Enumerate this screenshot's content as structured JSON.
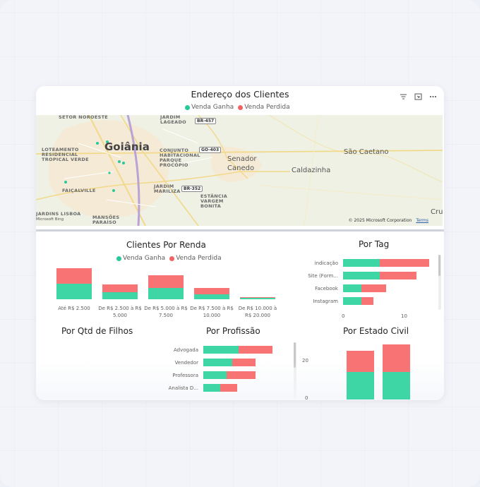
{
  "map_visual": {
    "title": "Endereço dos Clientes",
    "legend": [
      {
        "label": "Venda Ganha",
        "color": "#27c99a"
      },
      {
        "label": "Venda Perdida",
        "color": "#f26363"
      }
    ],
    "toolbar_icons": [
      "filter-icon",
      "focus-mode-icon",
      "more-options-icon"
    ],
    "place_labels": {
      "setor_noroeste": "SETOR NOROESTE",
      "jardim_lageado": "JARDIM\nLAGEADO",
      "loteamento": "LOTEAMENTO\nRESIDENCIAL\nTROPICAL VERDE",
      "goiania": "Goiânia",
      "conjunto": "CONJUNTO\nHABITACIONAL\nPARQUE\nPROCÓPIO",
      "faicalville": "FAIÇALVILLE",
      "jardim_mariliza": "JARDIM\nMARILIZA",
      "estancia": "ESTÂNCIA\nVARGEM\nBONITA",
      "jardins_lisboa": "JARDINS LISBOA",
      "mansoes": "MANSÕES\nPARAÍSO",
      "senador_canedo": "Senador\nCanedo",
      "sao_caetano": "São Caetano",
      "caldazinha": "Caldazinha",
      "cru": "Cru",
      "bing": "Microsoft Bing"
    },
    "road_shields": {
      "br457": "BR-457",
      "go403": "GO-403",
      "br352": "BR-352"
    },
    "copyright": "© 2025 Microsoft Corporation",
    "terms": "Terms"
  },
  "renda_chart": {
    "title": "Clientes Por Renda",
    "legend": [
      "Venda Ganha",
      "Venda Perdida"
    ],
    "chart_data": {
      "type": "bar",
      "stacked": true,
      "categories": [
        "Até R$ 2.500",
        "De R$ 2.500 à R$\n5.000",
        "De R$ 5.000 à R$\n7.500",
        "De R$ 7.500 à R$\n10.000",
        "De R$ 10.000 à\nR$ 20.000"
      ],
      "series": [
        {
          "name": "Venda Ganha",
          "color": "#3fd6a6",
          "values": [
            11,
            5,
            8,
            3.5,
            1
          ]
        },
        {
          "name": "Venda Perdida",
          "color": "#f87373",
          "values": [
            11,
            5.5,
            9,
            4.5,
            0.5
          ]
        }
      ]
    }
  },
  "tag_chart": {
    "title": "Por Tag",
    "chart_data": {
      "type": "bar",
      "orientation": "horizontal",
      "stacked": true,
      "categories": [
        "indicação",
        "Site (Form...",
        "Facebook",
        "Instagram"
      ],
      "series": [
        {
          "name": "Venda Ganha",
          "color": "#3fd6a6",
          "values": [
            6,
            6,
            3,
            3
          ]
        },
        {
          "name": "Venda Perdida",
          "color": "#f87373",
          "values": [
            8,
            6,
            4,
            2
          ]
        }
      ],
      "xticks": [
        "0",
        "10"
      ],
      "xlim": [
        0,
        14.5
      ]
    }
  },
  "filhos_chart": {
    "title": "Por Qtd de Filhos"
  },
  "profissao_chart": {
    "title": "Por Profissão",
    "chart_data": {
      "type": "bar",
      "orientation": "horizontal",
      "stacked": true,
      "categories": [
        "Advogada",
        "Vendedor",
        "Professora",
        "Analista D..."
      ],
      "series": [
        {
          "name": "Venda Ganha",
          "color": "#3fd6a6",
          "values": [
            50,
            41,
            33,
            24
          ]
        },
        {
          "name": "Venda Perdida",
          "color": "#f87373",
          "values": [
            48,
            33,
            41,
            24
          ]
        }
      ]
    }
  },
  "estado_civil_chart": {
    "title": "Por Estado Civil",
    "chart_data": {
      "type": "bar",
      "stacked": true,
      "categories": [
        "",
        ""
      ],
      "series": [
        {
          "name": "Venda Ganha",
          "color": "#3fd6a6",
          "values": [
            13,
            13
          ]
        },
        {
          "name": "Venda Perdida",
          "color": "#f87373",
          "values": [
            10,
            13
          ]
        }
      ],
      "yticks": [
        "20",
        "0"
      ],
      "ylim": [
        0,
        26
      ]
    }
  }
}
